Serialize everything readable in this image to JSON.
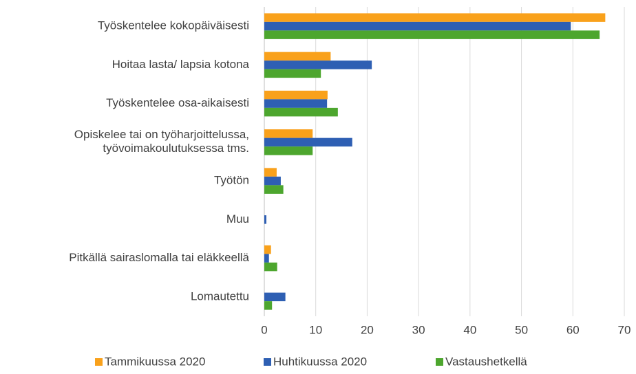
{
  "chart_data": {
    "type": "hbar",
    "categories": [
      "Työskentelee kokopäiväisesti",
      "Hoitaa lasta/ lapsia kotona",
      "Työskentelee osa-aikaisesti",
      "Opiskelee tai on työharjoittelussa,\ntyövoimakoulutuksessa tms.",
      "Työtön",
      "Muu",
      "Pitkällä sairaslomalla tai eläkkeellä",
      "Lomautettu"
    ],
    "series": [
      {
        "name": "Tammikuussa 2020",
        "color": "#f9a11b",
        "values": [
          66.3,
          12.9,
          12.3,
          9.4,
          2.4,
          0,
          1.3,
          0
        ]
      },
      {
        "name": "Huhtikuussa 2020",
        "color": "#2e5fb3",
        "values": [
          59.6,
          20.9,
          12.2,
          17.1,
          3.2,
          0.4,
          0.9,
          4.1
        ]
      },
      {
        "name": "Vastaushetkellä",
        "color": "#4da62e",
        "values": [
          65.2,
          11.0,
          14.3,
          9.4,
          3.7,
          0,
          2.5,
          1.5
        ]
      }
    ],
    "xlim": [
      0,
      70
    ],
    "xticks": [
      0,
      10,
      20,
      30,
      40,
      50,
      60,
      70
    ],
    "grid": true,
    "legend": "bottom"
  }
}
